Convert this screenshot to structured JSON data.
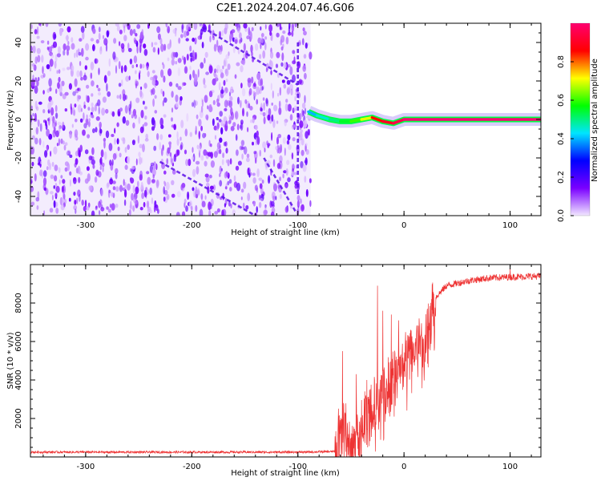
{
  "figure": {
    "title": "C2E1.2024.204.07.46.G06"
  },
  "chart_data": [
    {
      "type": "heatmap",
      "title": "C2E1.2024.204.07.46.G06",
      "xlabel": "Height of straight line (km)",
      "ylabel": "Frequency (Hz)",
      "xlim": [
        -352,
        129
      ],
      "ylim": [
        -50,
        50
      ],
      "xticks": [
        -300,
        -200,
        -100,
        0,
        100
      ],
      "yticks": [
        -40,
        -20,
        0,
        20,
        40
      ],
      "colorbar": {
        "label": "Normalized spectral amplitude",
        "range": [
          0,
          1
        ],
        "ticks": [
          0.0,
          0.2,
          0.4,
          0.6,
          0.8
        ],
        "colormap": [
          "#f2e8ff",
          "#7a00ff",
          "#0000ff",
          "#00e5ff",
          "#00ff00",
          "#ffff00",
          "#ff0000",
          "#ff0070"
        ]
      },
      "noise_region": {
        "x": [
          -352,
          -88
        ],
        "amplitude": [
          0.02,
          0.18
        ]
      },
      "features": [
        {
          "name": "streak",
          "points": [
            [
              -190,
              48
            ],
            [
              -100,
              18
            ]
          ]
        },
        {
          "name": "streak",
          "points": [
            [
              -132,
              -20
            ],
            [
              -102,
              -48
            ]
          ]
        },
        {
          "name": "streak",
          "points": [
            [
              -230,
              -22
            ],
            [
              -140,
              -50
            ]
          ]
        },
        {
          "name": "streak",
          "points": [
            [
              -100,
              40
            ],
            [
              -100,
              -40
            ]
          ]
        }
      ],
      "signal_track": [
        {
          "x": -90,
          "f": 4,
          "amp": 0.4
        },
        {
          "x": -82,
          "f": 2,
          "amp": 0.45
        },
        {
          "x": -70,
          "f": 0,
          "amp": 0.5
        },
        {
          "x": -60,
          "f": -1,
          "amp": 0.55
        },
        {
          "x": -50,
          "f": -1,
          "amp": 0.6
        },
        {
          "x": -40,
          "f": 0,
          "amp": 0.7
        },
        {
          "x": -30,
          "f": 1,
          "amp": 0.85
        },
        {
          "x": -20,
          "f": -1,
          "amp": 0.9
        },
        {
          "x": -10,
          "f": -2,
          "amp": 0.95
        },
        {
          "x": 0,
          "f": 0,
          "amp": 1.0
        },
        {
          "x": 129,
          "f": 0,
          "amp": 1.0
        }
      ]
    },
    {
      "type": "line",
      "xlabel": "Height of straight line (km)",
      "ylabel": "SNR (10 * v/v)",
      "xlim": [
        -352,
        129
      ],
      "ylim": [
        0,
        10000
      ],
      "xticks": [
        -300,
        -200,
        -100,
        0,
        100
      ],
      "yticks": [
        2000,
        4000,
        6000,
        8000
      ],
      "series_color": "#ee3333",
      "trend": [
        {
          "x": -352,
          "y": 250
        },
        {
          "x": -100,
          "y": 250
        },
        {
          "x": -65,
          "y": 280
        },
        {
          "x": -60,
          "y": 1600
        },
        {
          "x": -55,
          "y": 1500
        },
        {
          "x": -50,
          "y": 500
        },
        {
          "x": -40,
          "y": 1800
        },
        {
          "x": -30,
          "y": 2700
        },
        {
          "x": -20,
          "y": 3300
        },
        {
          "x": -10,
          "y": 4300
        },
        {
          "x": 0,
          "y": 5200
        },
        {
          "x": 10,
          "y": 6000
        },
        {
          "x": 20,
          "y": 6600
        },
        {
          "x": 30,
          "y": 8300
        },
        {
          "x": 40,
          "y": 8900
        },
        {
          "x": 60,
          "y": 9150
        },
        {
          "x": 80,
          "y": 9300
        },
        {
          "x": 100,
          "y": 9350
        },
        {
          "x": 129,
          "y": 9400
        }
      ],
      "spikes": [
        {
          "x": -58,
          "y": 5500
        },
        {
          "x": -45,
          "y": 4300
        },
        {
          "x": -35,
          "y": 4000
        },
        {
          "x": -25,
          "y": 8900
        },
        {
          "x": -20,
          "y": 7600
        },
        {
          "x": -12,
          "y": 7400
        },
        {
          "x": -5,
          "y": 7100
        },
        {
          "x": 100,
          "y": 9800
        }
      ]
    }
  ]
}
